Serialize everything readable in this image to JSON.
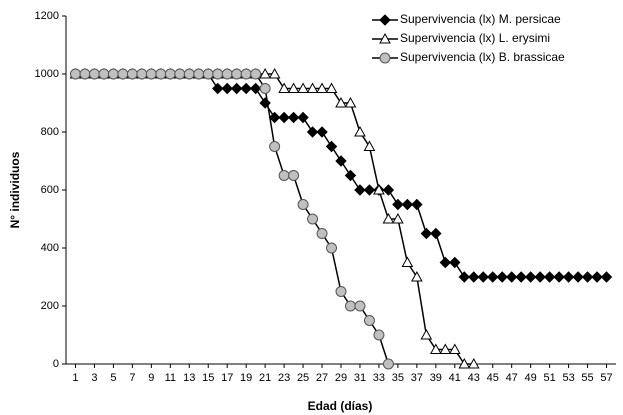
{
  "chart_data": {
    "type": "line",
    "x_label": "Edad (días)",
    "y_label": "N° individuos",
    "x": [
      1,
      2,
      3,
      4,
      5,
      6,
      7,
      8,
      9,
      10,
      11,
      12,
      13,
      14,
      15,
      16,
      17,
      18,
      19,
      20,
      21,
      22,
      23,
      24,
      25,
      26,
      27,
      28,
      29,
      30,
      31,
      32,
      33,
      34,
      35,
      36,
      37,
      38,
      39,
      40,
      41,
      42,
      43,
      44,
      45,
      46,
      47,
      48,
      49,
      50,
      51,
      52,
      53,
      54,
      55,
      56,
      57
    ],
    "xlim": [
      0,
      58
    ],
    "xticks": [
      1,
      3,
      5,
      7,
      9,
      11,
      13,
      15,
      17,
      19,
      21,
      23,
      25,
      27,
      29,
      31,
      33,
      35,
      37,
      39,
      41,
      43,
      45,
      47,
      49,
      51,
      53,
      55,
      57
    ],
    "ylim": [
      0,
      1200
    ],
    "yticks": [
      0,
      200,
      400,
      600,
      800,
      1000,
      1200
    ],
    "grid": false,
    "legend_position": "upper right",
    "series": [
      {
        "name": "Supervivencia (lx) M. persicae",
        "color": "#000000",
        "marker": "diamond",
        "values": [
          1000,
          1000,
          1000,
          1000,
          1000,
          1000,
          1000,
          1000,
          1000,
          1000,
          1000,
          1000,
          1000,
          1000,
          1000,
          950,
          950,
          950,
          950,
          950,
          900,
          850,
          850,
          850,
          850,
          800,
          800,
          750,
          700,
          650,
          600,
          600,
          600,
          600,
          550,
          550,
          550,
          450,
          450,
          350,
          350,
          300,
          300,
          300,
          300,
          300,
          300,
          300,
          300,
          300,
          300,
          300,
          300,
          300,
          300,
          300,
          300
        ]
      },
      {
        "name": "Supervivencia (lx) L. erysimi",
        "color": "#000000",
        "marker": "triangle",
        "values": [
          1000,
          1000,
          1000,
          1000,
          1000,
          1000,
          1000,
          1000,
          1000,
          1000,
          1000,
          1000,
          1000,
          1000,
          1000,
          1000,
          1000,
          1000,
          1000,
          1000,
          1000,
          1000,
          950,
          950,
          950,
          950,
          950,
          950,
          900,
          900,
          800,
          750,
          600,
          500,
          500,
          350,
          300,
          100,
          50,
          50,
          50,
          0,
          0,
          null,
          null,
          null,
          null,
          null,
          null,
          null,
          null,
          null,
          null,
          null,
          null,
          null,
          null
        ]
      },
      {
        "name": "Supervivencia (lx) B. brassicae",
        "color": "#000000",
        "marker": "circle",
        "values": [
          1000,
          1000,
          1000,
          1000,
          1000,
          1000,
          1000,
          1000,
          1000,
          1000,
          1000,
          1000,
          1000,
          1000,
          1000,
          1000,
          1000,
          1000,
          1000,
          1000,
          950,
          750,
          650,
          650,
          550,
          500,
          450,
          400,
          250,
          200,
          200,
          150,
          100,
          0,
          null,
          null,
          null,
          null,
          null,
          null,
          null,
          null,
          null,
          null,
          null,
          null,
          null,
          null,
          null,
          null,
          null,
          null,
          null,
          null,
          null,
          null,
          null
        ]
      }
    ]
  }
}
